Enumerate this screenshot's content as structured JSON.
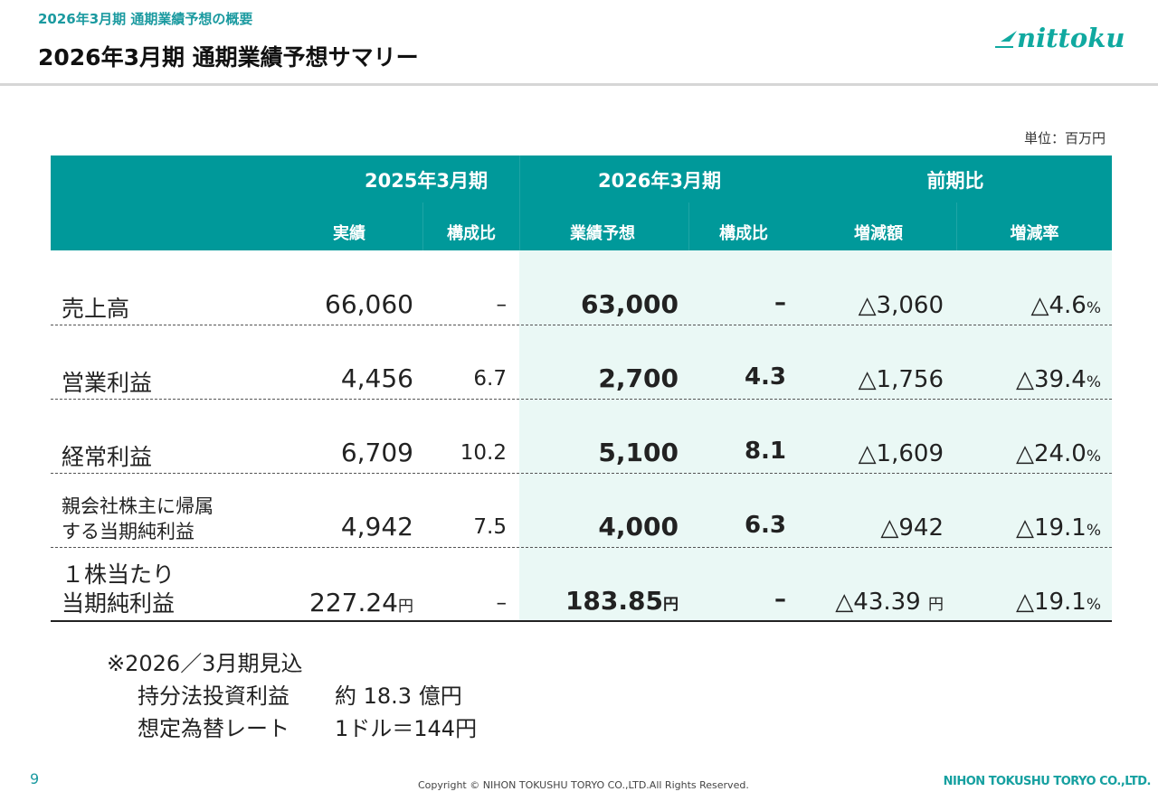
{
  "header": {
    "subtitle": "2026年3月期 通期業績予想の概要",
    "title": "2026年3月期 通期業績予想サマリー",
    "logo_text": "nittoku"
  },
  "unit": "単位：百万円",
  "table": {
    "groups": [
      "2025年3月期",
      "2026年3月期",
      "前期比"
    ],
    "columns": [
      "実績",
      "構成比",
      "業績予想",
      "構成比",
      "増減額",
      "増減率"
    ],
    "rows": [
      {
        "label": "売上高",
        "actual": "66,060",
        "ratio_prev": "–",
        "forecast": "63,000",
        "ratio": "–",
        "change": "△3,060",
        "rate": "△4.6",
        "rate_unit": "%"
      },
      {
        "label": "営業利益",
        "actual": "4,456",
        "ratio_prev": "6.7",
        "forecast": "2,700",
        "ratio": "4.3",
        "change": "△1,756",
        "rate": "△39.4",
        "rate_unit": "%"
      },
      {
        "label": "経常利益",
        "actual": "6,709",
        "ratio_prev": "10.2",
        "forecast": "5,100",
        "ratio": "8.1",
        "change": "△1,609",
        "rate": "△24.0",
        "rate_unit": "%"
      },
      {
        "label_line1": "親会社株主に帰属",
        "label_line2": "する当期純利益",
        "actual": "4,942",
        "ratio_prev": "7.5",
        "forecast": "4,000",
        "ratio": "6.3",
        "change": "△942",
        "rate": "△19.1",
        "rate_unit": "%"
      },
      {
        "label_line1": "１株当たり",
        "label_line2": "当期純利益",
        "actual": "227.24",
        "actual_unit": "円",
        "ratio_prev": "–",
        "forecast": "183.85",
        "forecast_unit": "円",
        "ratio": "–",
        "change": "△43.39",
        "change_unit": "円",
        "rate": "△19.1",
        "rate_unit": "%"
      }
    ]
  },
  "notes": {
    "heading": "※2026／3月期見込",
    "items": [
      {
        "key": "持分法投資利益",
        "value": "約 18.3 億円"
      },
      {
        "key": "想定為替レート",
        "value": "1ドル＝144円"
      }
    ]
  },
  "footer": {
    "page_number": "9",
    "copyright": "Copyright © NIHON TOKUSHU TORYO CO.,LTD.All Rights Reserved.",
    "company": "NIHON TOKUSHU TORYO CO.,LTD."
  },
  "colors": {
    "accent": "#00999a",
    "shade": "#eaf8f5",
    "logo": "#10a9a0"
  }
}
